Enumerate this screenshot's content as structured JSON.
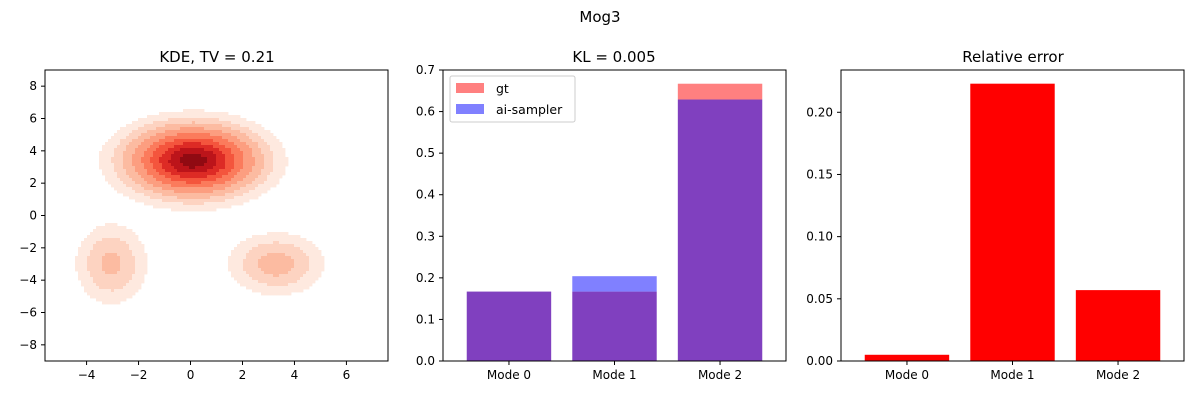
{
  "figure_title": "Mog3",
  "colors": {
    "gt": "#ff8080",
    "ai": "#8080ff",
    "overlap": "#8040bf",
    "error": "#ff0000",
    "kde_levels": [
      "#fee9df",
      "#fdd3c1",
      "#fcbba1",
      "#fc9e80",
      "#fb7b5c",
      "#f4553d",
      "#dd2b25",
      "#bc141a",
      "#900a12"
    ]
  },
  "chart_data": [
    {
      "type": "kde-contour",
      "title": "KDE, TV = 0.21",
      "xlim": [
        -5.6,
        7.6
      ],
      "ylim": [
        -9,
        9
      ],
      "xticks": [
        -4,
        -2,
        0,
        2,
        4,
        6
      ],
      "yticks": [
        -8,
        -6,
        -4,
        -2,
        0,
        2,
        4,
        6,
        8
      ],
      "components": [
        {
          "mx": 0.1,
          "my": 3.4,
          "sx": 1.45,
          "sy": 1.25,
          "w": 1.0
        },
        {
          "mx": -3.05,
          "my": -3.0,
          "sx": 0.8,
          "sy": 1.45,
          "w": 0.19
        },
        {
          "mx": 3.3,
          "my": -3.0,
          "sx": 1.05,
          "sy": 1.1,
          "w": 0.21
        }
      ],
      "levels": [
        0.045,
        0.1,
        0.17,
        0.27,
        0.4,
        0.54,
        0.68,
        0.82,
        0.94
      ]
    },
    {
      "type": "bar",
      "title": "KL = 0.005",
      "categories": [
        "Mode 0",
        "Mode 1",
        "Mode 2"
      ],
      "series": [
        {
          "name": "gt",
          "values": [
            0.167,
            0.167,
            0.667
          ]
        },
        {
          "name": "ai-sampler",
          "values": [
            0.167,
            0.204,
            0.629
          ]
        }
      ],
      "ylim": [
        0,
        0.7
      ],
      "yticks": [
        0.0,
        0.1,
        0.2,
        0.3,
        0.4,
        0.5,
        0.6,
        0.7
      ],
      "ytick_labels": [
        "0.0",
        "0.1",
        "0.2",
        "0.3",
        "0.4",
        "0.5",
        "0.6",
        "0.7"
      ],
      "legend_position": "top-left"
    },
    {
      "type": "bar",
      "title": "Relative error",
      "categories": [
        "Mode 0",
        "Mode 1",
        "Mode 2"
      ],
      "values": [
        0.005,
        0.223,
        0.057
      ],
      "ylim": [
        0,
        0.234
      ],
      "yticks": [
        0.0,
        0.05,
        0.1,
        0.15,
        0.2
      ],
      "ytick_labels": [
        "0.00",
        "0.05",
        "0.10",
        "0.15",
        "0.20"
      ]
    }
  ]
}
